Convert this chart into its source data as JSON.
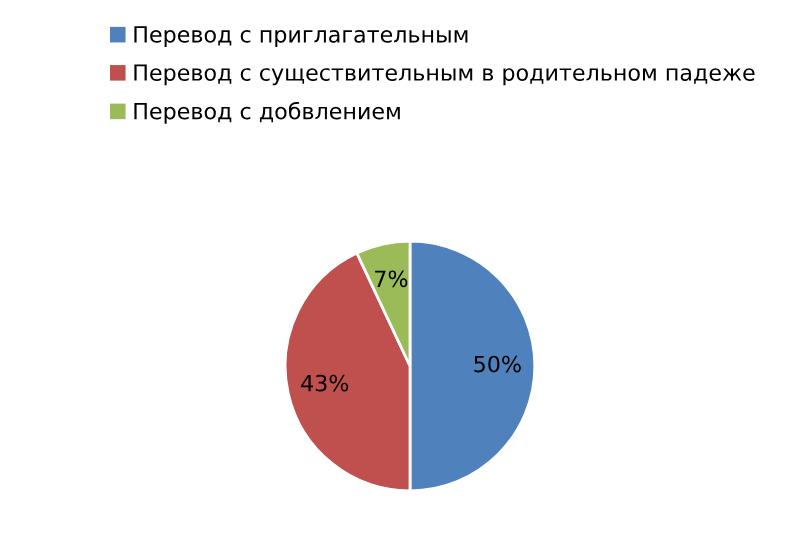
{
  "chart_data": {
    "type": "pie",
    "categories": [
      "Перевод с приглагательным",
      "Перевод с существительным в родительном падеже",
      "Перевод с добвлением"
    ],
    "values": [
      50,
      43,
      7
    ],
    "colors": [
      "#4f81bd",
      "#c0504d",
      "#9bbb59"
    ],
    "value_labels": [
      "50%",
      "43%",
      "7%"
    ],
    "legend": "top"
  }
}
